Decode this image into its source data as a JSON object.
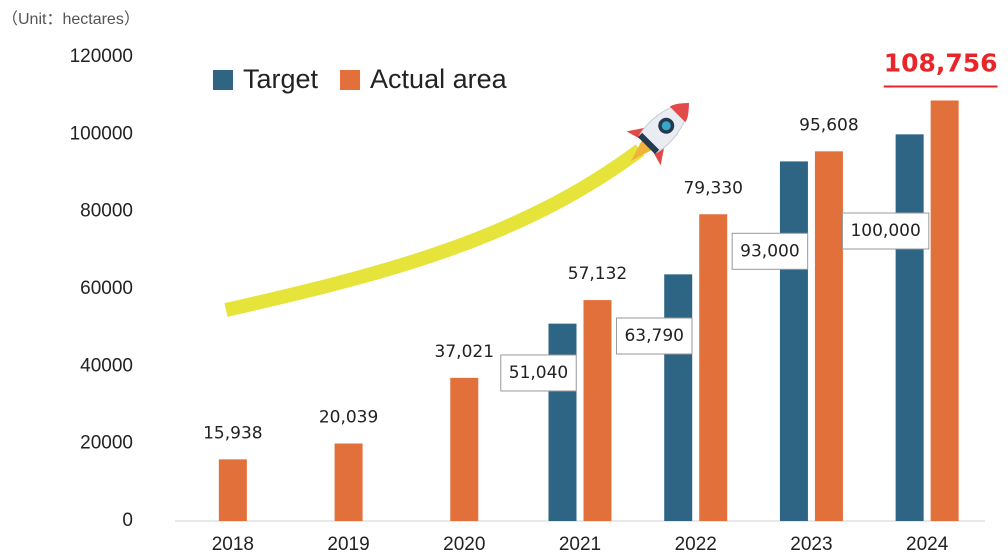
{
  "chart_data": {
    "type": "bar",
    "unit": "（Unit：hectares）",
    "categories": [
      "2018",
      "2019",
      "2020",
      "2021",
      "2022",
      "2023",
      "2024"
    ],
    "series": [
      {
        "name": "Target",
        "color": "#2e6484",
        "values": [
          null,
          null,
          null,
          51040,
          63790,
          93000,
          100000
        ],
        "value_labels": [
          null,
          null,
          null,
          "51,040",
          "63,790",
          "93,000",
          "100,000"
        ]
      },
      {
        "name": "Actual area",
        "color": "#e2703a",
        "values": [
          15938,
          20039,
          37021,
          57132,
          79330,
          95608,
          108756
        ],
        "value_labels": [
          "15,938",
          "20,039",
          "37,021",
          "57,132",
          "79,330",
          "95,608",
          "108,756"
        ]
      }
    ],
    "ylim": [
      0,
      120000
    ],
    "yticks": [
      0,
      20000,
      40000,
      60000,
      80000,
      100000,
      120000
    ],
    "grid": false,
    "legend": "top-left",
    "highlight_color": "#e8262a"
  }
}
